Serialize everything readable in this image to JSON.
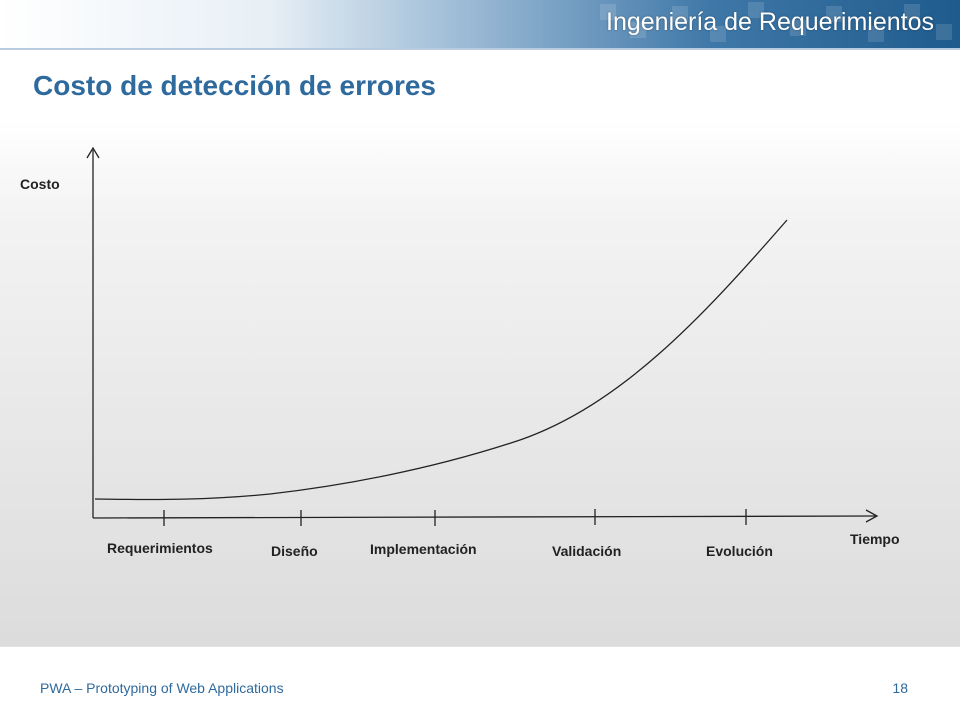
{
  "header": {
    "banner_title": "Ingeniería de Requerimientos"
  },
  "slide": {
    "title": "Costo de detección de errores"
  },
  "diagram": {
    "y_axis_label": "Costo",
    "x_axis_label": "Tiempo",
    "phases": [
      "Requerimientos",
      "Diseño",
      "Implementación",
      "Validación",
      "Evolución"
    ]
  },
  "footer": {
    "text": "PWA – Prototyping of Web Applications",
    "page_number": "18"
  }
}
